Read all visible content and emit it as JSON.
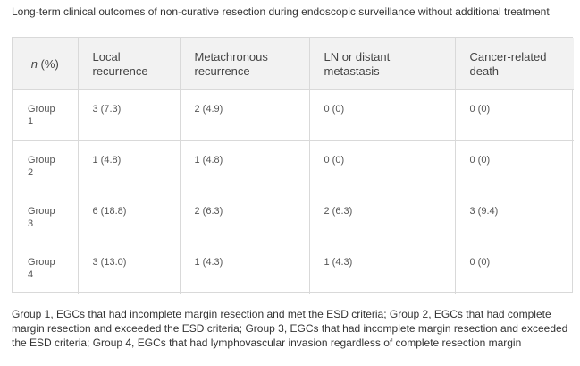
{
  "caption": "Long-term clinical outcomes of non-curative resection during endoscopic surveillance without additional treatment",
  "table": {
    "header": {
      "n_italic": "n",
      "n_rest": " (%)",
      "local": "Local recurrence",
      "metachronous": "Metachronous recurrence",
      "ln": "LN or distant metastasis",
      "cancer_death": "Cancer-related death"
    },
    "rows": [
      {
        "group": "Group 1",
        "local": "3 (7.3)",
        "metachronous": "2 (4.9)",
        "ln": "0 (0)",
        "cancer_death": "0 (0)"
      },
      {
        "group": "Group 2",
        "local": "1 (4.8)",
        "metachronous": "1 (4.8)",
        "ln": "0 (0)",
        "cancer_death": "0 (0)"
      },
      {
        "group": "Group 3",
        "local": "6 (18.8)",
        "metachronous": "2 (6.3)",
        "ln": "2 (6.3)",
        "cancer_death": "3 (9.4)"
      },
      {
        "group": "Group 4",
        "local": "3 (13.0)",
        "metachronous": "1 (4.3)",
        "ln": "1 (4.3)",
        "cancer_death": "0 (0)"
      }
    ]
  },
  "footnote": "Group 1, EGCs that had incomplete margin resection and met the ESD criteria; Group 2, EGCs that had complete margin resection and exceeded the ESD criteria; Group 3, EGCs that had incomplete margin resection and exceeded the ESD criteria; Group 4, EGCs that had lymphovascular invasion regardless of complete resection margin"
}
